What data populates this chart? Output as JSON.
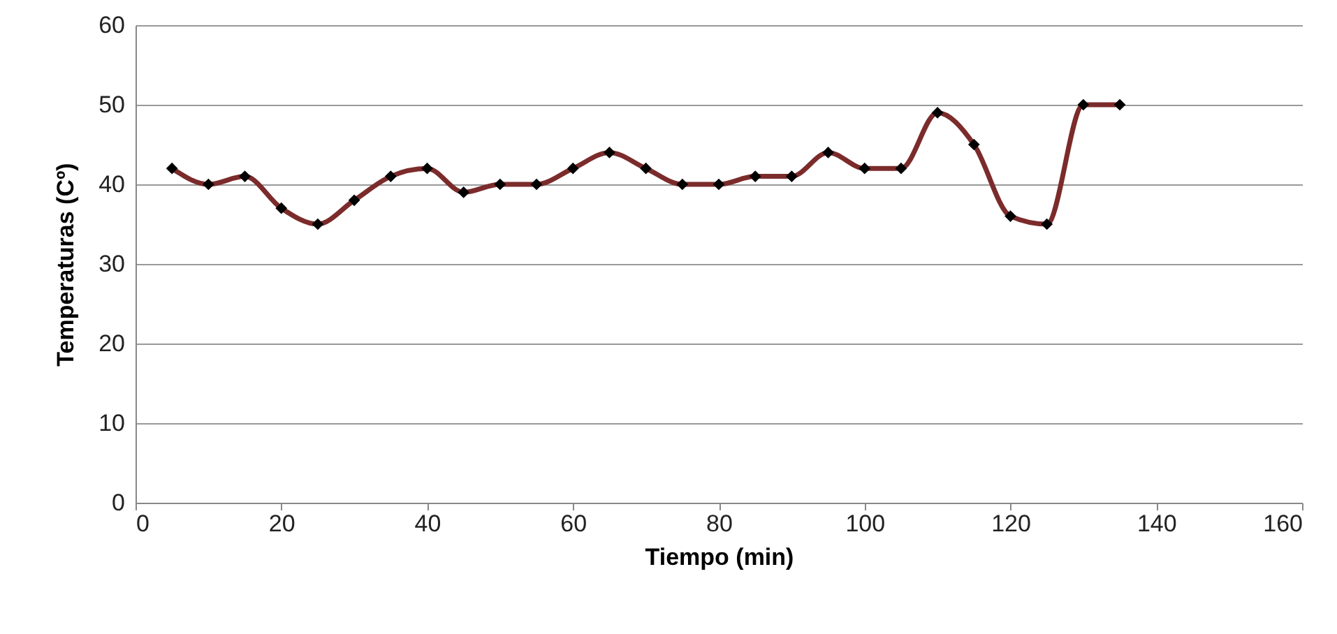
{
  "chart_data": {
    "type": "line",
    "xlabel": "Tiempo (min)",
    "ylabel": "Temperaturas (Cº)",
    "x": [
      5,
      10,
      15,
      20,
      25,
      30,
      35,
      40,
      45,
      50,
      55,
      60,
      65,
      70,
      75,
      80,
      85,
      90,
      95,
      100,
      105,
      110,
      115,
      120,
      125,
      130,
      135
    ],
    "series": [
      {
        "color": "#7b2b2b",
        "values": [
          42,
          40,
          41,
          37,
          35,
          38,
          41,
          42,
          39,
          40,
          40,
          42,
          44,
          42,
          40,
          40,
          41,
          41,
          44,
          42,
          42,
          49,
          45,
          36,
          35,
          50,
          50
        ]
      }
    ],
    "xlim": [
      0,
      160
    ],
    "xticks": [
      0,
      20,
      40,
      60,
      80,
      100,
      120,
      140,
      160
    ],
    "ylim": [
      0,
      60
    ],
    "yticks": [
      0,
      10,
      20,
      30,
      40,
      50,
      60
    ],
    "grid": "y",
    "marker": "diamond"
  }
}
